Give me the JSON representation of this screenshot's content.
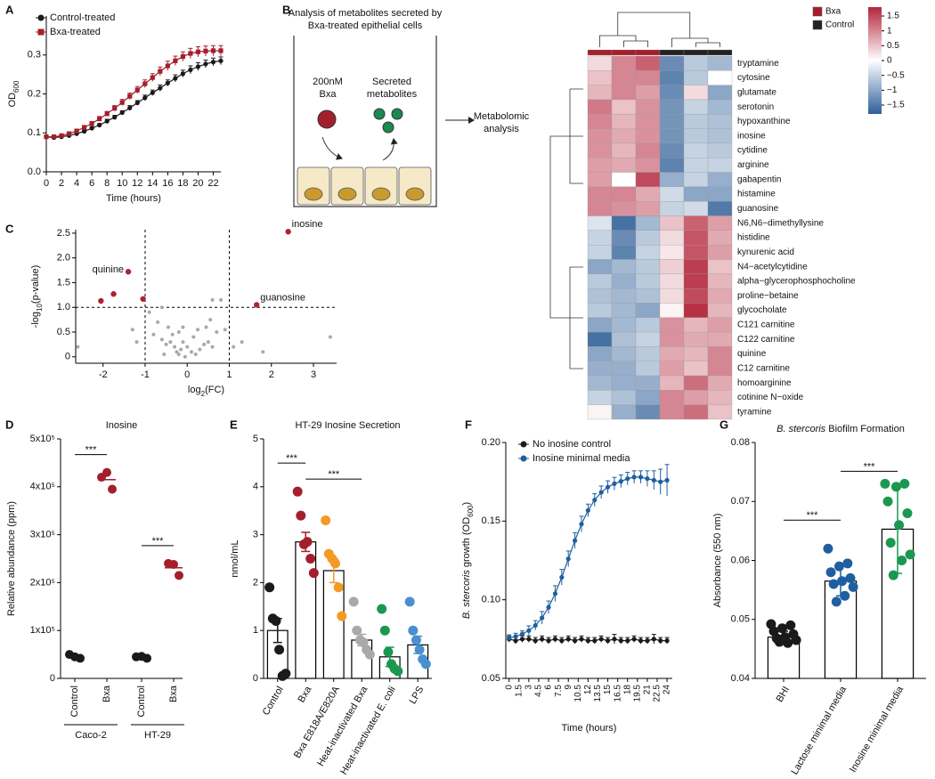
{
  "chart_data": [
    {
      "type": "line",
      "panel": "A",
      "x": [
        0,
        1,
        2,
        3,
        4,
        5,
        6,
        7,
        8,
        9,
        10,
        11,
        12,
        13,
        14,
        15,
        16,
        17,
        18,
        19,
        20,
        21,
        22,
        23
      ],
      "xlim": [
        0,
        23
      ],
      "xticks": [
        0,
        2,
        4,
        6,
        8,
        10,
        12,
        14,
        16,
        18,
        20,
        22
      ],
      "ylim": [
        0,
        0.4
      ],
      "yticks": [
        {
          "value": 0,
          "label": "0.0"
        },
        0.1,
        0.2,
        0.3
      ],
      "x_label": "Time (hours)",
      "y_label": [
        {
          "text": "OD"
        },
        {
          "text": "600",
          "sub": true
        }
      ],
      "legend": "upper left",
      "series": [
        {
          "name": "Control-treated",
          "color": "#1a1a1a",
          "marker": "circle",
          "values": [
            0.09,
            0.088,
            0.09,
            0.093,
            0.098,
            0.104,
            0.112,
            0.12,
            0.13,
            0.14,
            0.152,
            0.164,
            0.177,
            0.19,
            0.203,
            0.215,
            0.228,
            0.24,
            0.252,
            0.262,
            0.27,
            0.277,
            0.282,
            0.285
          ],
          "errors": [
            0.003,
            0.003,
            0.003,
            0.003,
            0.003,
            0.004,
            0.004,
            0.004,
            0.005,
            0.005,
            0.005,
            0.006,
            0.006,
            0.007,
            0.007,
            0.008,
            0.008,
            0.009,
            0.009,
            0.01,
            0.01,
            0.01,
            0.01,
            0.01
          ]
        },
        {
          "name": "Bxa-treated",
          "color": "#a31f2b",
          "marker": "square",
          "values": [
            0.09,
            0.09,
            0.093,
            0.098,
            0.105,
            0.114,
            0.124,
            0.136,
            0.149,
            0.163,
            0.178,
            0.194,
            0.21,
            0.226,
            0.242,
            0.258,
            0.272,
            0.285,
            0.296,
            0.304,
            0.308,
            0.31,
            0.311,
            0.311
          ],
          "errors": [
            0.003,
            0.003,
            0.003,
            0.004,
            0.004,
            0.005,
            0.005,
            0.006,
            0.006,
            0.007,
            0.008,
            0.008,
            0.009,
            0.01,
            0.01,
            0.011,
            0.012,
            0.012,
            0.012,
            0.013,
            0.013,
            0.013,
            0.013,
            0.013
          ]
        }
      ]
    },
    {
      "type": "heatmap",
      "panel": "B",
      "diagram": {
        "title": [
          "Analysis of metabolites secreted by",
          "Bxa-treated epithelial cells"
        ],
        "treatment": [
          "200nM",
          "Bxa"
        ],
        "secreted": [
          "Secreted",
          "metabolites"
        ],
        "analysis": [
          "Metabolomic",
          "analysis"
        ]
      },
      "series": [
        {
          "name": "Bxa",
          "color": "#a31f2b"
        },
        {
          "name": "Control",
          "color": "#222222"
        }
      ],
      "column_groups": [
        "Bxa",
        "Bxa",
        "Bxa",
        "Control",
        "Control",
        "Control"
      ],
      "clim": [
        -1.8,
        1.8
      ],
      "cticks": [
        1.5,
        1,
        0.5,
        0,
        {
          "value": -0.5,
          "label": "−0.5"
        },
        {
          "value": -1,
          "label": "−1"
        },
        {
          "value": -1.5,
          "label": "−1.5"
        }
      ],
      "rows": [
        "tryptamine",
        "cytosine",
        "glutamate",
        "serotonin",
        "hypoxanthine",
        "inosine",
        "cytidine",
        "arginine",
        "gabapentin",
        "histamine",
        "guanosine",
        "N6,N6−dimethyllysine",
        "histidine",
        "kynurenic acid",
        "N4−acetylcytidine",
        "alpha−glycerophosphocholine",
        "proline−betaine",
        "glycocholate",
        "C121 carnitine",
        "C122 carnitine",
        "quinine",
        "C12 carnitine",
        "homoarginine",
        "cotinine N−oxide",
        "tyramine"
      ],
      "values": [
        [
          0.3,
          1.0,
          1.3,
          -1.3,
          -0.6,
          -0.8
        ],
        [
          0.5,
          1.0,
          1.0,
          -1.4,
          -0.6,
          0.0
        ],
        [
          0.6,
          1.0,
          0.8,
          -1.3,
          0.3,
          -1.0
        ],
        [
          1.1,
          0.5,
          0.9,
          -1.2,
          -0.5,
          -0.8
        ],
        [
          1.0,
          0.6,
          0.9,
          -1.2,
          -0.6,
          -0.7
        ],
        [
          0.9,
          0.7,
          0.9,
          -1.2,
          -0.6,
          -0.7
        ],
        [
          0.9,
          0.6,
          1.0,
          -1.3,
          -0.5,
          -0.6
        ],
        [
          0.8,
          0.7,
          0.9,
          -1.4,
          -0.5,
          -0.5
        ],
        [
          0.8,
          0.0,
          1.5,
          -0.9,
          -0.5,
          -0.9
        ],
        [
          1.0,
          1.0,
          0.7,
          -0.4,
          -1.0,
          -1.0
        ],
        [
          1.0,
          0.9,
          0.8,
          -0.5,
          -0.4,
          -1.5
        ],
        [
          -0.3,
          -1.6,
          -0.8,
          0.5,
          1.3,
          0.8
        ],
        [
          -0.5,
          -1.3,
          -0.6,
          0.3,
          1.4,
          0.7
        ],
        [
          -0.5,
          -1.4,
          -0.5,
          0.2,
          1.4,
          0.8
        ],
        [
          -1.0,
          -0.8,
          -0.6,
          0.4,
          1.6,
          0.5
        ],
        [
          -0.6,
          -0.9,
          -0.6,
          0.3,
          1.6,
          0.6
        ],
        [
          -0.7,
          -0.8,
          -0.7,
          0.3,
          1.5,
          0.7
        ],
        [
          -0.6,
          -0.8,
          -1.0,
          0.1,
          1.7,
          0.6
        ],
        [
          -1.0,
          -0.8,
          -0.6,
          0.9,
          0.6,
          0.8
        ],
        [
          -1.6,
          -0.7,
          -0.5,
          0.9,
          0.7,
          0.7
        ],
        [
          -1.0,
          -0.8,
          -0.6,
          0.7,
          0.6,
          1.0
        ],
        [
          -0.9,
          -0.9,
          -0.6,
          0.8,
          0.5,
          1.0
        ],
        [
          -0.8,
          -0.9,
          -0.9,
          0.6,
          1.2,
          0.7
        ],
        [
          -0.5,
          -0.7,
          -1.0,
          1.0,
          0.8,
          0.6
        ],
        [
          0.1,
          -0.9,
          -1.3,
          1.0,
          1.2,
          0.5
        ]
      ]
    },
    {
      "type": "scatter",
      "panel": "C",
      "xlim": [
        -2.65,
        3.55
      ],
      "xticks": [
        -2,
        -1,
        0,
        1,
        2,
        3
      ],
      "ylim": [
        -0.13,
        2.57
      ],
      "yticks": [
        0,
        0.5,
        {
          "value": 1,
          "label": "1.0"
        },
        1.5,
        {
          "value": 2,
          "label": "2.0"
        },
        2.5
      ],
      "x_label": [
        {
          "text": "log"
        },
        {
          "text": "2",
          "sub": true
        },
        {
          "text": "(FC)"
        }
      ],
      "y_label": [
        {
          "text": "-log"
        },
        {
          "text": "10",
          "sub": true
        },
        {
          "text": "(p-value)"
        }
      ],
      "thresholds": {
        "x": [
          -1,
          1
        ],
        "y": [
          1
        ]
      },
      "series": [
        {
          "color": "#a9a9a9",
          "x": [
            -2.6,
            3.4,
            -1.2,
            -0.6,
            -0.5,
            -0.4,
            -0.3,
            -0.25,
            -0.2,
            -0.15,
            -0.1,
            0,
            0.1,
            0.2,
            0.3,
            0.4,
            0.5,
            0.6,
            -0.35,
            -0.45,
            -0.2,
            0.15,
            0.7,
            0.8,
            0.6,
            -0.9,
            0.9,
            -0.7,
            -0.8,
            1.3,
            1.8,
            -0.05,
            0.25,
            -0.55,
            -0.1,
            0.45,
            0.55,
            -0.6,
            1.1,
            -1.3
          ],
          "values": [
            0.2,
            0.4,
            0.3,
            0.35,
            0.25,
            0.3,
            0.2,
            0.1,
            0.05,
            0.15,
            0.3,
            0.2,
            0.1,
            0.05,
            0.15,
            0.25,
            0.3,
            0.2,
            0.45,
            0.6,
            0.5,
            0.4,
            0.5,
            1.15,
            1.15,
            0.9,
            0.55,
            0.7,
            0.45,
            0.3,
            0.1,
            0.0,
            0.55,
            0.05,
            0.6,
            0.6,
            0.75,
            1.0,
            0.2,
            0.55
          ]
        },
        {
          "color": "#b22030",
          "x": [
            2.4,
            -1.4,
            -1.75,
            -2.05,
            -1.05,
            1.65
          ],
          "values": [
            2.53,
            1.72,
            1.27,
            1.13,
            1.17,
            1.05
          ],
          "labels": [
            "inosine",
            "quinine",
            null,
            null,
            null,
            "guanosine"
          ]
        }
      ]
    },
    {
      "type": "strip",
      "panel": "D",
      "title": "Inosine",
      "y_label": "Relative abundance (ppm)",
      "ylim": [
        0,
        500000
      ],
      "yticks": [
        0,
        {
          "value": 100000,
          "label": "1x10⁵"
        },
        {
          "value": 200000,
          "label": "2x10⁵"
        },
        {
          "value": 300000,
          "label": "3x10⁵"
        },
        {
          "value": 400000,
          "label": "4x10⁵"
        },
        {
          "value": 500000,
          "label": "5x10⁵"
        }
      ],
      "colors": [
        "#1a1a1a",
        "#a31f2b"
      ],
      "groups": [
        {
          "name": "Caco-2",
          "categories": [
            "Control",
            "Bxa"
          ],
          "points": [
            [
              50000,
              42000,
              45000
            ],
            [
              420000,
              395000,
              430000
            ]
          ],
          "means": [
            46000,
            415000
          ],
          "significance": "***"
        },
        {
          "name": "HT-29",
          "categories": [
            "Control",
            "Bxa"
          ],
          "points": [
            [
              45000,
              42000,
              46000
            ],
            [
              240000,
              215000,
              238000
            ]
          ],
          "means": [
            44000,
            231000
          ],
          "significance": "***"
        }
      ]
    },
    {
      "type": "bar",
      "panel": "E",
      "title": "HT-29 Inosine Secretion",
      "y_label": "nmol/mL",
      "ylim": [
        0,
        5
      ],
      "yticks": [
        0,
        1,
        2,
        3,
        4,
        5
      ],
      "categories": [
        "Control",
        "Bxa",
        "Bxa E818A/E820A",
        "Heat-inactivated Bxa",
        "Heat-inactivated E. coli",
        "LPS"
      ],
      "values": [
        1.0,
        2.85,
        2.25,
        0.8,
        0.45,
        0.7
      ],
      "errors": [
        0.25,
        0.2,
        0.25,
        0.12,
        0.2,
        0.18
      ],
      "colors": [
        "#1a1a1a",
        "#a31f2b",
        "#f39a25",
        "#a9a9a9",
        "#1a9850",
        "#4a90d0"
      ],
      "points": [
        [
          1.9,
          1.25,
          1.2,
          0.6,
          0.05,
          0.1
        ],
        [
          3.9,
          3.4,
          2.8,
          2.85,
          2.5,
          2.2
        ],
        [
          3.3,
          2.6,
          2.5,
          2.4,
          1.9,
          1.3
        ],
        [
          1.6,
          1.0,
          0.8,
          0.75,
          0.6,
          0.5
        ],
        [
          1.45,
          1.0,
          0.55,
          0.3,
          0.2,
          0.15
        ],
        [
          1.6,
          1.0,
          0.8,
          0.6,
          0.4,
          0.3
        ]
      ],
      "significance": [
        {
          "from": "Control",
          "to": "Bxa",
          "label": "***"
        },
        {
          "from": "Bxa",
          "to": "Heat-inactivated Bxa",
          "label": "***"
        }
      ]
    },
    {
      "type": "line",
      "panel": "F",
      "x": [
        0,
        1,
        2,
        3,
        4,
        5,
        6,
        7,
        8,
        9,
        10,
        11,
        12,
        13,
        14,
        15,
        16,
        17,
        18,
        19,
        20,
        21,
        22,
        23,
        24
      ],
      "xlim": [
        -0.5,
        24.8
      ],
      "xticks": [
        0,
        1.5,
        3,
        4.5,
        6,
        7.5,
        9,
        10.5,
        12,
        13.5,
        15,
        16.5,
        18,
        19.5,
        21,
        22.5,
        24
      ],
      "ylim": [
        0.05,
        0.2
      ],
      "yticks": [
        0.05,
        {
          "value": 0.1,
          "label": "0.10"
        },
        0.15,
        {
          "value": 0.2,
          "label": "0.20"
        }
      ],
      "x_label": "Time (hours)",
      "y_label": [
        {
          "text": "B. stercoris",
          "italic": true
        },
        {
          "text": " growth (OD"
        },
        {
          "text": "600",
          "sub": true
        },
        {
          "text": ")"
        }
      ],
      "legend": "upper left",
      "series": [
        {
          "name": "No inosine control",
          "color": "#1a1a1a",
          "marker": "circle",
          "values": [
            0.075,
            0.074,
            0.075,
            0.075,
            0.074,
            0.075,
            0.074,
            0.075,
            0.074,
            0.075,
            0.074,
            0.075,
            0.074,
            0.074,
            0.075,
            0.074,
            0.075,
            0.074,
            0.074,
            0.075,
            0.074,
            0.074,
            0.075,
            0.074,
            0.074
          ],
          "errors": [
            0.002,
            0.002,
            0.002,
            0.002,
            0.002,
            0.002,
            0.002,
            0.002,
            0.002,
            0.002,
            0.002,
            0.002,
            0.002,
            0.002,
            0.002,
            0.002,
            0.003,
            0.002,
            0.002,
            0.002,
            0.002,
            0.002,
            0.003,
            0.002,
            0.002
          ]
        },
        {
          "name": "Inosine minimal media",
          "color": "#1f5fa0",
          "marker": "circle",
          "values": [
            0.0757,
            0.0767,
            0.0782,
            0.0804,
            0.0837,
            0.0885,
            0.0952,
            0.1039,
            0.1143,
            0.126,
            0.1376,
            0.1481,
            0.1568,
            0.1634,
            0.1683,
            0.1716,
            0.1738,
            0.1753,
            0.177,
            0.178,
            0.178,
            0.177,
            0.176,
            0.175,
            0.176
          ],
          "errors": [
            0.002,
            0.002,
            0.002,
            0.003,
            0.003,
            0.004,
            0.004,
            0.005,
            0.005,
            0.005,
            0.005,
            0.005,
            0.004,
            0.004,
            0.004,
            0.004,
            0.004,
            0.004,
            0.004,
            0.004,
            0.004,
            0.005,
            0.006,
            0.008,
            0.01
          ]
        }
      ]
    },
    {
      "type": "bar",
      "panel": "G",
      "title": [
        {
          "text": "B. stercoris",
          "italic": true
        },
        {
          "text": " Biofilm Formation"
        }
      ],
      "y_label": "Absorbance (550 nm)",
      "ylim": [
        0.04,
        0.08
      ],
      "yticks": [
        0.04,
        0.05,
        0.06,
        0.07,
        0.08
      ],
      "categories": [
        "BHI",
        "Lactose minimal media",
        "Inosine minimal media"
      ],
      "values": [
        0.047,
        0.0565,
        0.0653
      ],
      "errors": [
        0.001,
        0.0025,
        0.0075
      ],
      "colors": [
        "#1a1a1a",
        "#1f5fa0",
        "#1a9850"
      ],
      "points": [
        [
          0.0492,
          0.049,
          0.0485,
          0.048,
          0.0475,
          0.047,
          0.0468,
          0.0465,
          0.046,
          0.0462
        ],
        [
          0.062,
          0.0595,
          0.059,
          0.058,
          0.057,
          0.0565,
          0.056,
          0.0555,
          0.054,
          0.053
        ],
        [
          0.073,
          0.073,
          0.0725,
          0.07,
          0.068,
          0.066,
          0.063,
          0.061,
          0.06,
          0.0575
        ]
      ],
      "significance": [
        {
          "from": "BHI",
          "to": "Lactose minimal media",
          "label": "***"
        },
        {
          "from": "Lactose minimal media",
          "to": "Inosine minimal media",
          "label": "***"
        }
      ]
    }
  ]
}
